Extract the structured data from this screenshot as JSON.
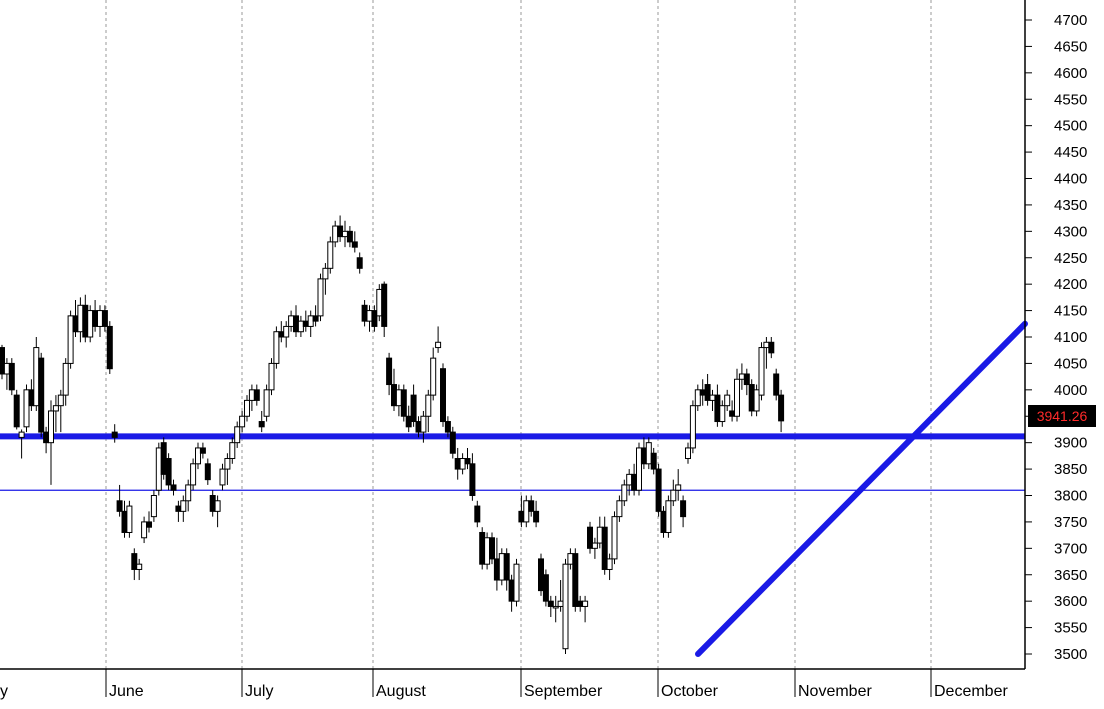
{
  "chart_data": {
    "type": "candlestick",
    "title": "",
    "xlabel": "",
    "ylabel": "",
    "ylim": [
      3480,
      4730
    ],
    "y_ticks": [
      3500,
      3550,
      3600,
      3650,
      3700,
      3750,
      3800,
      3850,
      3900,
      3950,
      4000,
      4050,
      4100,
      4150,
      4200,
      4250,
      4300,
      4350,
      4400,
      4450,
      4500,
      4550,
      4600,
      4650,
      4700
    ],
    "y_tick_labels_shown": [
      3500,
      3550,
      3600,
      3650,
      3700,
      3750,
      3800,
      3850,
      3900,
      4000,
      4050,
      4100,
      4150,
      4200,
      4250,
      4300,
      4350,
      4400,
      4450,
      4500,
      4550,
      4600,
      4650,
      4700
    ],
    "month_labels": [
      "y",
      "June",
      "July",
      "August",
      "September",
      "October",
      "November",
      "December"
    ],
    "last_price": {
      "label": "3941.26",
      "value": 3941.26
    },
    "horizontal_lines": [
      {
        "value": 3912,
        "style": "thick"
      },
      {
        "value": 3810,
        "style": "thin"
      }
    ],
    "trendline": {
      "start": {
        "bar": 140,
        "value": 3500
      },
      "end": {
        "bar": 208,
        "value": 4125
      }
    },
    "grid_vertical": true,
    "colors": {
      "up": "#ffffff",
      "down": "#000000",
      "trend": "#1a1ae6",
      "grid": "#999999",
      "last_price_bg": "#000000",
      "last_price_text": "#ff2a2a"
    },
    "candles": [
      [
        4080,
        4085,
        4020,
        4030
      ],
      [
        4030,
        4060,
        4000,
        4050
      ],
      [
        4050,
        4060,
        3990,
        4000
      ],
      [
        3990,
        4000,
        3925,
        3930
      ],
      [
        3910,
        3925,
        3870,
        3920
      ],
      [
        3930,
        4010,
        3920,
        4000
      ],
      [
        4000,
        4020,
        3960,
        3970
      ],
      [
        3970,
        4100,
        3960,
        4080
      ],
      [
        4060,
        4070,
        3910,
        3920
      ],
      [
        3920,
        3930,
        3880,
        3900
      ],
      [
        3900,
        3980,
        3820,
        3960
      ],
      [
        3960,
        3990,
        3920,
        3970
      ],
      [
        3970,
        4000,
        3920,
        3990
      ],
      [
        3990,
        4060,
        3970,
        4050
      ],
      [
        4050,
        4150,
        4040,
        4140
      ],
      [
        4140,
        4170,
        4100,
        4110
      ],
      [
        4110,
        4175,
        4090,
        4160
      ],
      [
        4160,
        4180,
        4090,
        4100
      ],
      [
        4100,
        4160,
        4090,
        4150
      ],
      [
        4150,
        4170,
        4110,
        4120
      ],
      [
        4120,
        4160,
        4100,
        4150
      ],
      [
        4150,
        4160,
        4110,
        4120
      ],
      [
        4120,
        4130,
        4030,
        4040
      ],
      [
        3920,
        3935,
        3900,
        3910
      ],
      [
        3790,
        3820,
        3760,
        3770
      ],
      [
        3770,
        3790,
        3720,
        3730
      ],
      [
        3730,
        3790,
        3720,
        3780
      ],
      [
        3690,
        3700,
        3640,
        3660
      ],
      [
        3660,
        3680,
        3640,
        3670
      ],
      [
        3720,
        3760,
        3710,
        3750
      ],
      [
        3750,
        3770,
        3730,
        3740
      ],
      [
        3760,
        3810,
        3750,
        3800
      ],
      [
        3810,
        3900,
        3800,
        3890
      ],
      [
        3900,
        3910,
        3830,
        3840
      ],
      [
        3870,
        3880,
        3810,
        3820
      ],
      [
        3820,
        3830,
        3800,
        3810
      ],
      [
        3780,
        3790,
        3750,
        3770
      ],
      [
        3770,
        3800,
        3750,
        3790
      ],
      [
        3790,
        3830,
        3770,
        3820
      ],
      [
        3820,
        3870,
        3810,
        3860
      ],
      [
        3860,
        3900,
        3850,
        3890
      ],
      [
        3890,
        3900,
        3870,
        3880
      ],
      [
        3860,
        3870,
        3820,
        3830
      ],
      [
        3800,
        3810,
        3760,
        3770
      ],
      [
        3770,
        3800,
        3740,
        3790
      ],
      [
        3820,
        3860,
        3810,
        3850
      ],
      [
        3850,
        3880,
        3820,
        3870
      ],
      [
        3870,
        3910,
        3860,
        3900
      ],
      [
        3900,
        3940,
        3890,
        3930
      ],
      [
        3930,
        3960,
        3920,
        3950
      ],
      [
        3950,
        3990,
        3940,
        3980
      ],
      [
        3980,
        4010,
        3960,
        4000
      ],
      [
        4000,
        4010,
        3970,
        3980
      ],
      [
        3940,
        3960,
        3920,
        3930
      ],
      [
        3950,
        4010,
        3940,
        4000
      ],
      [
        4000,
        4060,
        3990,
        4050
      ],
      [
        4050,
        4120,
        4040,
        4110
      ],
      [
        4110,
        4130,
        4090,
        4100
      ],
      [
        4100,
        4130,
        4080,
        4120
      ],
      [
        4120,
        4150,
        4110,
        4140
      ],
      [
        4140,
        4160,
        4100,
        4110
      ],
      [
        4110,
        4140,
        4100,
        4130
      ],
      [
        4130,
        4150,
        4110,
        4120
      ],
      [
        4120,
        4150,
        4100,
        4140
      ],
      [
        4140,
        4160,
        4120,
        4130
      ],
      [
        4140,
        4220,
        4130,
        4210
      ],
      [
        4210,
        4240,
        4180,
        4230
      ],
      [
        4230,
        4290,
        4220,
        4280
      ],
      [
        4280,
        4320,
        4270,
        4310
      ],
      [
        4310,
        4330,
        4280,
        4290
      ],
      [
        4290,
        4320,
        4270,
        4300
      ],
      [
        4300,
        4310,
        4270,
        4280
      ],
      [
        4280,
        4300,
        4260,
        4270
      ],
      [
        4250,
        4260,
        4220,
        4230
      ],
      [
        4160,
        4170,
        4120,
        4130
      ],
      [
        4130,
        4160,
        4110,
        4150
      ],
      [
        4150,
        4160,
        4110,
        4120
      ],
      [
        4140,
        4200,
        4130,
        4190
      ],
      [
        4200,
        4205,
        4100,
        4120
      ],
      [
        4060,
        4070,
        3990,
        4010
      ],
      [
        4010,
        4040,
        3960,
        3970
      ],
      [
        3970,
        4010,
        3950,
        4000
      ],
      [
        4000,
        4010,
        3940,
        3950
      ],
      [
        3950,
        3970,
        3920,
        3930
      ],
      [
        3990,
        4010,
        3930,
        3940
      ],
      [
        3940,
        3950,
        3910,
        3920
      ],
      [
        3920,
        3960,
        3900,
        3950
      ],
      [
        3950,
        4000,
        3920,
        3990
      ],
      [
        3990,
        4080,
        3980,
        4060
      ],
      [
        4080,
        4120,
        4070,
        4090
      ],
      [
        4040,
        4050,
        3930,
        3940
      ],
      [
        3940,
        3950,
        3910,
        3920
      ],
      [
        3920,
        3930,
        3870,
        3880
      ],
      [
        3870,
        3890,
        3830,
        3850
      ],
      [
        3850,
        3880,
        3840,
        3870
      ],
      [
        3870,
        3890,
        3850,
        3860
      ],
      [
        3860,
        3880,
        3790,
        3800
      ],
      [
        3780,
        3790,
        3740,
        3750
      ],
      [
        3730,
        3740,
        3660,
        3670
      ],
      [
        3670,
        3730,
        3660,
        3720
      ],
      [
        3720,
        3730,
        3670,
        3680
      ],
      [
        3680,
        3720,
        3620,
        3640
      ],
      [
        3640,
        3700,
        3630,
        3690
      ],
      [
        3690,
        3700,
        3620,
        3640
      ],
      [
        3640,
        3650,
        3580,
        3600
      ],
      [
        3600,
        3680,
        3590,
        3670
      ],
      [
        3770,
        3800,
        3740,
        3750
      ],
      [
        3750,
        3800,
        3740,
        3790
      ],
      [
        3790,
        3800,
        3760,
        3770
      ],
      [
        3770,
        3790,
        3740,
        3750
      ],
      [
        3680,
        3690,
        3610,
        3620
      ],
      [
        3650,
        3660,
        3590,
        3600
      ],
      [
        3600,
        3610,
        3570,
        3590
      ],
      [
        3590,
        3610,
        3560,
        3590
      ],
      [
        3590,
        3640,
        3580,
        3600
      ],
      [
        3510,
        3680,
        3500,
        3670
      ],
      [
        3670,
        3700,
        3660,
        3690
      ],
      [
        3690,
        3700,
        3580,
        3590
      ],
      [
        3600,
        3610,
        3580,
        3590
      ],
      [
        3590,
        3610,
        3560,
        3600
      ],
      [
        3740,
        3750,
        3690,
        3700
      ],
      [
        3700,
        3720,
        3680,
        3710
      ],
      [
        3710,
        3760,
        3700,
        3740
      ],
      [
        3740,
        3760,
        3650,
        3660
      ],
      [
        3660,
        3690,
        3640,
        3680
      ],
      [
        3680,
        3770,
        3670,
        3760
      ],
      [
        3760,
        3800,
        3750,
        3790
      ],
      [
        3790,
        3830,
        3780,
        3820
      ],
      [
        3820,
        3850,
        3800,
        3840
      ],
      [
        3840,
        3860,
        3800,
        3810
      ],
      [
        3810,
        3900,
        3800,
        3890
      ],
      [
        3890,
        3910,
        3850,
        3860
      ],
      [
        3860,
        3910,
        3850,
        3900
      ],
      [
        3880,
        3890,
        3840,
        3850
      ],
      [
        3850,
        3860,
        3760,
        3770
      ],
      [
        3770,
        3780,
        3720,
        3730
      ],
      [
        3730,
        3800,
        3720,
        3790
      ],
      [
        3790,
        3830,
        3780,
        3810
      ],
      [
        3810,
        3850,
        3790,
        3820
      ],
      [
        3790,
        3800,
        3740,
        3760
      ],
      [
        3870,
        3900,
        3860,
        3890
      ],
      [
        3890,
        3980,
        3880,
        3970
      ],
      [
        3970,
        4010,
        3960,
        4000
      ],
      [
        4000,
        4020,
        3970,
        3990
      ],
      [
        4010,
        4030,
        3970,
        3980
      ],
      [
        3980,
        4000,
        3960,
        3990
      ],
      [
        3990,
        4010,
        3930,
        3940
      ],
      [
        3940,
        3980,
        3930,
        3970
      ],
      [
        3970,
        4000,
        3960,
        3990
      ],
      [
        3960,
        3980,
        3940,
        3950
      ],
      [
        3950,
        4040,
        3940,
        4020
      ],
      [
        4020,
        4050,
        4000,
        4030
      ],
      [
        4030,
        4040,
        3990,
        4010
      ],
      [
        4010,
        4020,
        3950,
        3960
      ],
      [
        3960,
        4010,
        3950,
        4000
      ],
      [
        3990,
        4090,
        3980,
        4080
      ],
      [
        4080,
        4100,
        4040,
        4090
      ],
      [
        4090,
        4100,
        4060,
        4070
      ],
      [
        4030,
        4040,
        3980,
        3990
      ],
      [
        3990,
        4000,
        3920,
        3941.26
      ]
    ]
  }
}
